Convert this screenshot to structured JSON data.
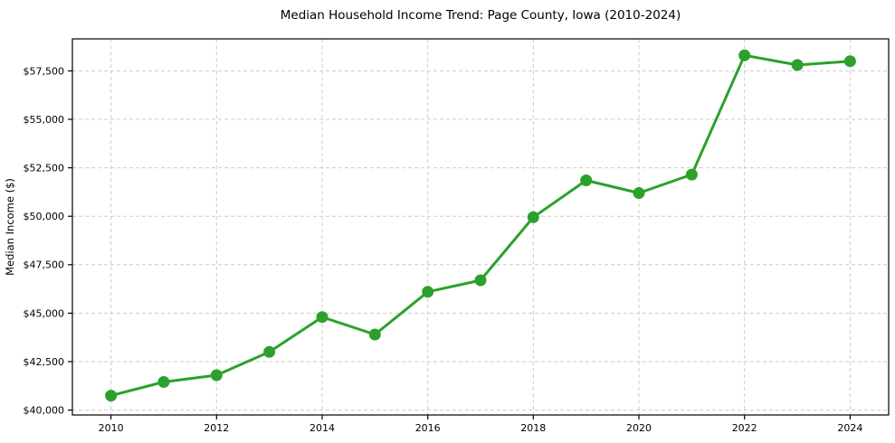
{
  "chart_data": {
    "type": "line",
    "title": "Median Household Income Trend: Page County, Iowa (2010-2024)",
    "xlabel": "",
    "ylabel": "Median Income ($)",
    "x": [
      2010,
      2011,
      2012,
      2013,
      2014,
      2015,
      2016,
      2017,
      2018,
      2019,
      2020,
      2021,
      2022,
      2023,
      2024
    ],
    "series": [
      {
        "name": "Median household income",
        "color": "#2ca02c",
        "marker": "circle",
        "values": [
          40750,
          41450,
          41800,
          43000,
          44800,
          43900,
          46100,
          46700,
          49950,
          51850,
          51200,
          52150,
          58300,
          57800,
          58000
        ]
      }
    ],
    "xlim": [
      2009.27,
      2024.73
    ],
    "ylim": [
      39750,
      59150
    ],
    "xticks": [
      2010,
      2012,
      2014,
      2016,
      2018,
      2020,
      2022,
      2024
    ],
    "xtick_labels": [
      "2010",
      "2012",
      "2014",
      "2016",
      "2018",
      "2020",
      "2022",
      "2024"
    ],
    "yticks": [
      40000,
      42500,
      45000,
      47500,
      50000,
      52500,
      55000,
      57500
    ],
    "ytick_labels": [
      "$40,000",
      "$42,500",
      "$45,000",
      "$47,500",
      "$50,000",
      "$52,500",
      "$55,000",
      "$57,500"
    ],
    "grid": true,
    "grid_color": "#cccccc",
    "grid_dash": "4 3",
    "axis_color": "#000000",
    "background": "#ffffff",
    "legend": "none"
  }
}
